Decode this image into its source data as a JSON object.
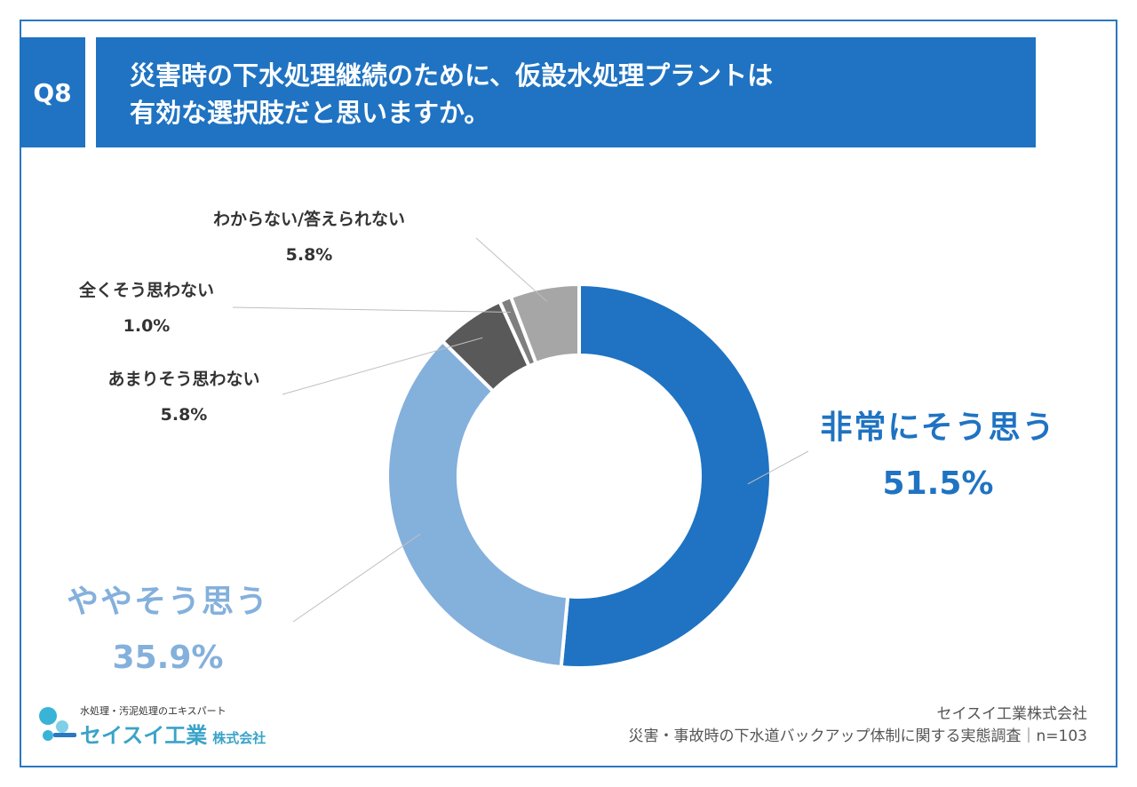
{
  "header": {
    "badge": "Q8",
    "title_line1": "災害時の下水処理継続のために、仮設水処理プラントは",
    "title_line2": "有効な選択肢だと思いますか。"
  },
  "chart_data": {
    "type": "pie",
    "donut": true,
    "categories": [
      "非常にそう思う",
      "ややそう思う",
      "あまりそう思わない",
      "全くそう思わない",
      "わからない/答えられない"
    ],
    "values": [
      51.5,
      35.9,
      5.8,
      1.0,
      5.8
    ],
    "value_labels": [
      "51.5%",
      "35.9%",
      "5.8%",
      "1.0%",
      "5.8%"
    ],
    "colors": [
      "#1f73c2",
      "#84b0dc",
      "#595959",
      "#7f7f7f",
      "#a6a6a6"
    ]
  },
  "logo": {
    "tagline": "水処理・汚泥処理のエキスパート",
    "name": "セイスイ工業",
    "suffix": "株式会社"
  },
  "source": {
    "company": "セイスイ工業株式会社",
    "survey": "災害・事故時の下水道バックアップ体制に関する実態調査｜n=103"
  }
}
